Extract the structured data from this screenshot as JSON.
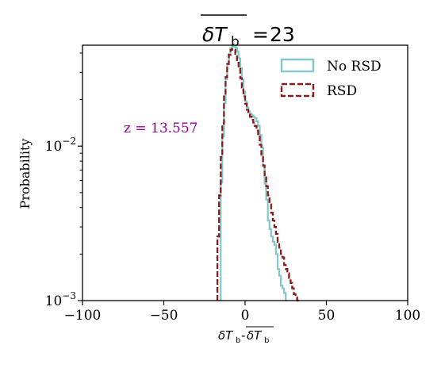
{
  "chart_data": {
    "type": "line",
    "title_value": "23",
    "xlabel": "",
    "ylabel": "Probability",
    "xlim": [
      -100,
      100
    ],
    "ylim": [
      0.001,
      0.045
    ],
    "yscale": "log",
    "grid": false,
    "legend_position": "top-right",
    "x_ticks": [
      -100,
      -50,
      0,
      50,
      100
    ],
    "x_tick_labels": [
      "−100",
      "−50",
      "0",
      "50",
      "100"
    ],
    "y_ticks": [
      0.01,
      0.001
    ],
    "y_tick_labels": [
      "10−2",
      "10−3"
    ],
    "annotation": "z = 13.557",
    "series": [
      {
        "name": "No RSD",
        "color": "#83c8c8",
        "style": "solid",
        "x": [
          -15,
          -15,
          -14,
          -13,
          -12,
          -11,
          -10,
          -9,
          -8,
          -7,
          -6,
          -5,
          -4,
          -3,
          -2,
          -1,
          0,
          1,
          2,
          3,
          4,
          5,
          6,
          7,
          8,
          9,
          10,
          11,
          12,
          13,
          14,
          15,
          16,
          17,
          18,
          19,
          20,
          21,
          22,
          23,
          24,
          25,
          26
        ],
        "values": [
          0.001,
          0.0025,
          0.0058,
          0.0115,
          0.019,
          0.027,
          0.034,
          0.0395,
          0.043,
          0.044,
          0.044,
          0.0435,
          0.041,
          0.037,
          0.032,
          0.027,
          0.0225,
          0.0195,
          0.0178,
          0.0168,
          0.0162,
          0.0158,
          0.0155,
          0.0152,
          0.0145,
          0.0135,
          0.0118,
          0.0098,
          0.0075,
          0.0057,
          0.0045,
          0.0033,
          0.0029,
          0.0026,
          0.0024,
          0.0023,
          0.002,
          0.0016,
          0.00145,
          0.00125,
          0.0012,
          0.00112,
          0.001
        ]
      },
      {
        "name": "RSD",
        "color": "#8b1a1a",
        "style": "dashed",
        "x": [
          -17,
          -17,
          -16,
          -15,
          -14,
          -13,
          -12,
          -11,
          -10,
          -9,
          -8,
          -7,
          -6,
          -5,
          -4,
          -3,
          -2,
          -1,
          0,
          1,
          2,
          3,
          4,
          5,
          6,
          7,
          8,
          9,
          10,
          11,
          12,
          13,
          14,
          15,
          16,
          17,
          18,
          19,
          20,
          21,
          22,
          23,
          24,
          25,
          26,
          27,
          28,
          29,
          30,
          31,
          32,
          33
        ],
        "values": [
          0.001,
          0.0014,
          0.0026,
          0.0048,
          0.0085,
          0.014,
          0.021,
          0.028,
          0.034,
          0.039,
          0.042,
          0.0425,
          0.042,
          0.0395,
          0.036,
          0.032,
          0.0275,
          0.024,
          0.021,
          0.0188,
          0.0172,
          0.0162,
          0.0155,
          0.0148,
          0.0142,
          0.0135,
          0.0126,
          0.0115,
          0.0102,
          0.0088,
          0.0075,
          0.0063,
          0.0055,
          0.0048,
          0.0042,
          0.0037,
          0.0033,
          0.003,
          0.0027,
          0.0024,
          0.0022,
          0.002,
          0.0019,
          0.0017,
          0.0016,
          0.0015,
          0.0014,
          0.0013,
          0.0012,
          0.0011,
          0.00105,
          0.001
        ]
      }
    ]
  }
}
